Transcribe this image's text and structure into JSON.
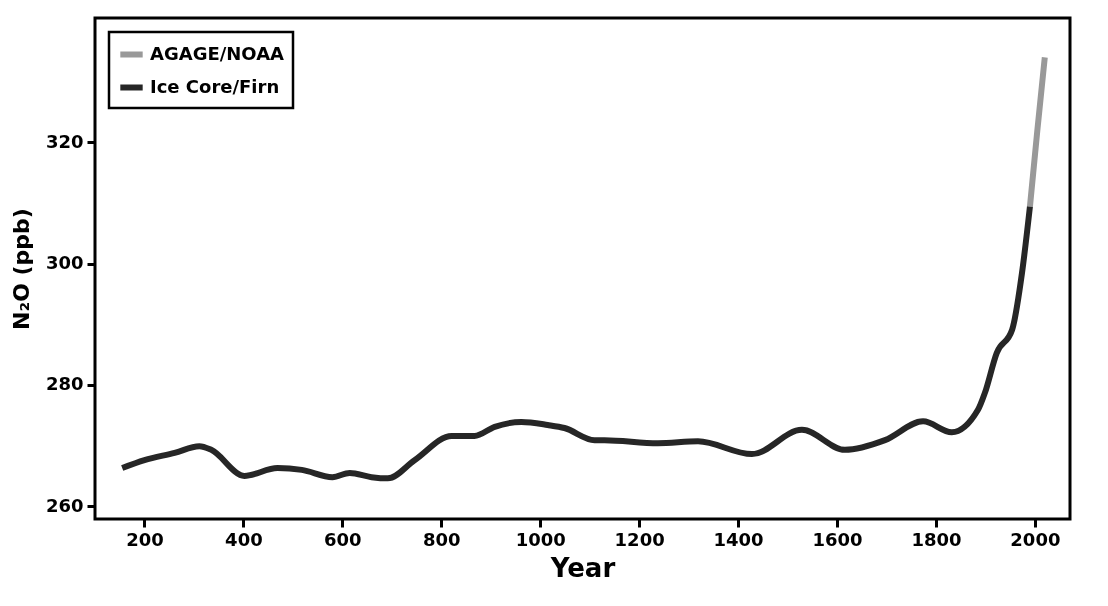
{
  "chart_data": {
    "type": "line",
    "xlabel": "Year",
    "ylabel": "N₂O (ppb)",
    "xlim": [
      100,
      2071
    ],
    "ylim": [
      257.9,
      340.5
    ],
    "xticks": [
      200,
      400,
      600,
      800,
      1000,
      1200,
      1400,
      1600,
      1800,
      2000
    ],
    "yticks": [
      260,
      280,
      300,
      320
    ],
    "grid": false,
    "legend": "top left",
    "marker": "none",
    "line_style": "solid",
    "series": [
      {
        "name": "AGAGE/NOAA",
        "color": "#999999",
        "x": [
          1990,
          2005,
          2020
        ],
        "values": [
          309.4,
          322,
          334
        ]
      },
      {
        "name": "Ice Core/Firn",
        "color": "#262626",
        "x": [
          155,
          200,
          261,
          311,
          335,
          402,
          469,
          518,
          580,
          615,
          659,
          692,
          746,
          821,
          867,
          908,
          962,
          1015,
          1049,
          1110,
          1130,
          1238,
          1319,
          1428,
          1529,
          1616,
          1697,
          1774,
          1832,
          1885,
          1899,
          1923,
          1954,
          1974,
          1990
        ],
        "values": [
          266.3,
          267.6,
          268.8,
          269.9,
          269.3,
          265.0,
          266.3,
          266.0,
          264.8,
          265.5,
          264.8,
          264.6,
          267.6,
          271.6,
          271.6,
          273.1,
          273.9,
          273.4,
          272.9,
          270.9,
          270.9,
          270.4,
          270.7,
          268.6,
          272.6,
          269.3,
          270.9,
          274.0,
          272.2,
          275.9,
          278.7,
          285.3,
          289.1,
          298.5,
          309.4
        ]
      }
    ]
  }
}
